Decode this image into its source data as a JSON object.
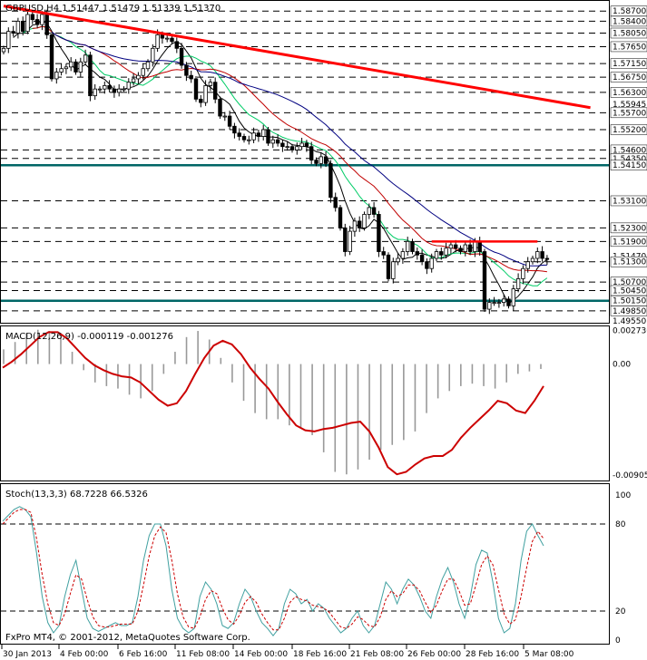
{
  "chart_data": [
    {
      "type": "line",
      "title": "GBPUSD,H4  1.51447 1.51479 1.51339 1.51370",
      "symbol": "GBPUSD",
      "timeframe": "H4",
      "ohlc_last": {
        "open": 1.51447,
        "high": 1.51479,
        "low": 1.51339,
        "close": 1.5137
      },
      "price_labels": [
        "1.58700",
        "1.58400",
        "1.58050",
        "1.57650",
        "1.57150",
        "1.56750",
        "1.56300",
        "1.55945",
        "1.55700",
        "1.55200",
        "1.54600",
        "1.54350",
        "1.54150",
        "1.53100",
        "1.52300",
        "1.51900",
        "1.51470",
        "1.51300",
        "1.50700",
        "1.50450",
        "1.50150",
        "1.49850",
        "1.49550"
      ],
      "ylim": [
        1.495,
        1.59
      ],
      "horizontal_levels": [
        1.587,
        1.584,
        1.5805,
        1.5765,
        1.5715,
        1.5675,
        1.563,
        1.557,
        1.552,
        1.546,
        1.5435,
        1.531,
        1.523,
        1.519,
        1.513,
        1.507,
        1.5045,
        1.4985
      ],
      "thick_levels": [
        1.5415,
        1.5015
      ],
      "trend_line": {
        "start": [
          0,
          1.5885
        ],
        "end": [
          122,
          1.5585
        ]
      },
      "resistance_segment": {
        "start": [
          89,
          1.519
        ],
        "end": [
          111,
          1.519
        ],
        "price": 1.519
      },
      "close_series": [
        1.576,
        1.581,
        1.5805,
        1.584,
        1.581,
        1.586,
        1.5845,
        1.583,
        1.586,
        1.58,
        1.567,
        1.569,
        1.57,
        1.5705,
        1.572,
        1.569,
        1.572,
        1.574,
        1.562,
        1.564,
        1.564,
        1.565,
        1.564,
        1.563,
        1.564,
        1.564,
        1.566,
        1.567,
        1.568,
        1.57,
        1.572,
        1.576,
        1.58,
        1.579,
        1.579,
        1.578,
        1.576,
        1.571,
        1.568,
        1.567,
        1.561,
        1.56,
        1.565,
        1.566,
        1.561,
        1.556,
        1.556,
        1.553,
        1.551,
        1.55,
        1.549,
        1.549,
        1.551,
        1.55,
        1.552,
        1.548,
        1.549,
        1.548,
        1.547,
        1.547,
        1.546,
        1.547,
        1.548,
        1.547,
        1.543,
        1.542,
        1.544,
        1.542,
        1.532,
        1.529,
        1.523,
        1.516,
        1.522,
        1.525,
        1.523,
        1.527,
        1.529,
        1.527,
        1.516,
        1.515,
        1.508,
        1.513,
        1.514,
        1.516,
        1.519,
        1.516,
        1.515,
        1.513,
        1.511,
        1.514,
        1.516,
        1.515,
        1.517,
        1.518,
        1.517,
        1.516,
        1.518,
        1.516,
        1.519,
        1.516,
        1.499,
        1.501,
        1.501,
        1.501,
        1.502,
        1.5,
        1.505,
        1.508,
        1.511,
        1.513,
        1.514,
        1.516,
        1.514,
        1.5137
      ],
      "x_tick_labels": [
        "30 Jan 2013",
        "4 Feb 00:00",
        "6 Feb 16:00",
        "11 Feb 08:00",
        "14 Feb 00:00",
        "18 Feb 16:00",
        "21 Feb 08:00",
        "26 Feb 00:00",
        "28 Feb 16:00",
        "5 Mar 08:00"
      ],
      "colors": {
        "candle": "#000000",
        "grid": "#000000",
        "thick_level": "#006666",
        "trend": "#ff0000",
        "ma_blue": "#000080",
        "ma_red": "#c00000",
        "ma_green": "#00cc66",
        "ma_black": "#000000"
      }
    },
    {
      "type": "line",
      "title": "MACD(12,26,9) -0.000119 -0.001276",
      "ylim": [
        -0.0095,
        0.003
      ],
      "y_tick_labels": [
        "0.002736",
        "0.00",
        "-0.00905"
      ],
      "signal": [
        -0.0003,
        0.0002,
        0.0008,
        0.0015,
        0.0022,
        0.0026,
        0.0026,
        0.0021,
        0.0013,
        0.0005,
        -0.0001,
        -0.0005,
        -0.0008,
        -0.001,
        -0.0011,
        -0.0015,
        -0.0022,
        -0.0029,
        -0.0034,
        -0.0032,
        -0.0022,
        -0.0008,
        0.0005,
        0.0015,
        0.0019,
        0.0016,
        0.0008,
        -0.0003,
        -0.0012,
        -0.002,
        -0.0031,
        -0.0041,
        -0.005,
        -0.0054,
        -0.0055,
        -0.0053,
        -0.0052,
        -0.005,
        -0.0048,
        -0.0047,
        -0.0055,
        -0.0068,
        -0.0084,
        -0.009,
        -0.0088,
        -0.0082,
        -0.0077,
        -0.0075,
        -0.0075,
        -0.007,
        -0.006,
        -0.0052,
        -0.0045,
        -0.0038,
        -0.003,
        -0.0032,
        -0.0038,
        -0.004,
        -0.003,
        -0.0018
      ],
      "histogram": [
        0.0012,
        0.0018,
        0.0025,
        0.0028,
        0.0027,
        0.0022,
        0.001,
        -0.0005,
        -0.0015,
        -0.0018,
        -0.002,
        -0.0025,
        -0.0028,
        -0.0022,
        -0.0008,
        0.001,
        0.0022,
        0.0027,
        0.002,
        0.0005,
        -0.0015,
        -0.003,
        -0.004,
        -0.0045,
        -0.0045,
        -0.005,
        -0.0052,
        -0.0058,
        -0.0072,
        -0.0088,
        -0.009,
        -0.0086,
        -0.0078,
        -0.007,
        -0.0066,
        -0.0062,
        -0.0055,
        -0.004,
        -0.0028,
        -0.0022,
        -0.0018,
        -0.0016,
        -0.0018,
        -0.002,
        -0.0015,
        -0.0008,
        -0.0006,
        -0.0004
      ],
      "colors": {
        "signal": "#cc0000",
        "histogram": "#999999"
      }
    },
    {
      "type": "line",
      "title": "Stoch(13,3,3) 68.7228 66.5326",
      "ylim": [
        0,
        100
      ],
      "y_tick_labels": [
        "100",
        "80",
        "20",
        "0"
      ],
      "levels": [
        80,
        20
      ],
      "main": [
        82,
        86,
        90,
        92,
        90,
        85,
        60,
        30,
        12,
        5,
        10,
        30,
        45,
        55,
        35,
        15,
        8,
        6,
        8,
        10,
        12,
        10,
        10,
        12,
        30,
        55,
        72,
        80,
        80,
        65,
        35,
        15,
        8,
        5,
        8,
        30,
        40,
        35,
        25,
        10,
        8,
        12,
        25,
        35,
        30,
        20,
        12,
        8,
        3,
        8,
        25,
        35,
        32,
        25,
        28,
        20,
        25,
        22,
        15,
        10,
        5,
        8,
        15,
        20,
        10,
        5,
        10,
        25,
        40,
        35,
        25,
        35,
        42,
        38,
        30,
        20,
        15,
        30,
        42,
        50,
        40,
        25,
        15,
        30,
        52,
        62,
        60,
        40,
        15,
        5,
        8,
        25,
        55,
        75,
        80,
        72,
        65
      ],
      "signal": [
        80,
        84,
        88,
        90,
        90,
        88,
        70,
        45,
        25,
        12,
        10,
        18,
        32,
        45,
        42,
        28,
        16,
        10,
        9,
        9,
        10,
        11,
        11,
        11,
        20,
        38,
        58,
        72,
        78,
        74,
        55,
        32,
        16,
        9,
        8,
        16,
        28,
        34,
        32,
        22,
        14,
        11,
        17,
        26,
        30,
        26,
        18,
        12,
        7,
        7,
        15,
        26,
        30,
        28,
        27,
        24,
        23,
        22,
        19,
        14,
        9,
        8,
        11,
        16,
        14,
        10,
        9,
        16,
        28,
        34,
        30,
        32,
        38,
        38,
        34,
        26,
        19,
        24,
        34,
        42,
        42,
        34,
        24,
        25,
        38,
        52,
        58,
        52,
        35,
        18,
        11,
        14,
        30,
        50,
        68,
        75,
        70
      ],
      "colors": {
        "main": "#40a0a0",
        "signal": "#cc0000"
      }
    }
  ],
  "watermark": "FxPro MT4, © 2001-2012, MetaQuotes Software Corp."
}
